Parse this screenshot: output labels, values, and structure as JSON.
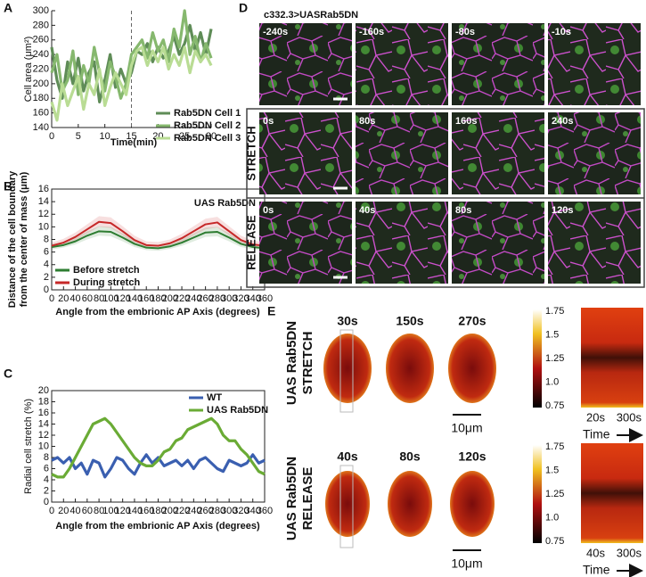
{
  "chart_data": [
    {
      "type": "line",
      "label": "A",
      "x_label": "Time(min)",
      "y_label": "Cell area (μm²)",
      "x": [
        0,
        1,
        2,
        3,
        4,
        5,
        6,
        7,
        8,
        9,
        10,
        11,
        12,
        13,
        14,
        15,
        16,
        17,
        18,
        19,
        20,
        21,
        22,
        23,
        24,
        25,
        26,
        27,
        28,
        29,
        30
      ],
      "xlim": [
        0,
        30
      ],
      "xticks": [
        0,
        5,
        10,
        15,
        20,
        25,
        30
      ],
      "ylim": [
        140,
        300
      ],
      "yticks": [
        140,
        160,
        180,
        200,
        220,
        240,
        260,
        280,
        300
      ],
      "vline": 15,
      "legend": "lower right",
      "series": [
        {
          "name": "Rab5DN Cell 1",
          "color": "#5f8c57",
          "values": [
            250,
            205,
            180,
            230,
            200,
            235,
            190,
            215,
            230,
            175,
            205,
            240,
            195,
            220,
            200,
            215,
            245,
            240,
            255,
            230,
            250,
            235,
            245,
            265,
            240,
            255,
            280,
            245,
            270,
            240,
            275
          ]
        },
        {
          "name": "Rab5DN Cell 2",
          "color": "#86b86e",
          "values": [
            215,
            240,
            190,
            205,
            245,
            185,
            225,
            200,
            250,
            215,
            190,
            230,
            210,
            180,
            200,
            240,
            250,
            260,
            235,
            270,
            245,
            260,
            230,
            275,
            250,
            300,
            240,
            265,
            230,
            255,
            235
          ]
        },
        {
          "name": "Rab5DN Cell 3",
          "color": "#b9dc94",
          "values": [
            175,
            150,
            200,
            170,
            190,
            210,
            165,
            200,
            185,
            220,
            170,
            195,
            215,
            200,
            185,
            225,
            245,
            250,
            225,
            245,
            230,
            250,
            220,
            240,
            225,
            250,
            215,
            245,
            230,
            240,
            225
          ]
        }
      ]
    },
    {
      "type": "line",
      "label": "B",
      "title": "UAS Rab5DN",
      "x_label": "Angle from the embrionic AP Axis (degrees)",
      "y_label": [
        "Distance of the cell boundary",
        "from the center of mass (μm)"
      ],
      "x": [
        0,
        20,
        40,
        60,
        80,
        100,
        120,
        140,
        160,
        180,
        200,
        220,
        240,
        260,
        280,
        300,
        320,
        340,
        360
      ],
      "xlim": [
        0,
        360
      ],
      "xticks": [
        0,
        20,
        40,
        60,
        80,
        100,
        120,
        140,
        160,
        180,
        200,
        220,
        240,
        260,
        280,
        300,
        320,
        340,
        360
      ],
      "ylim": [
        0,
        16
      ],
      "yticks": [
        0,
        2,
        4,
        6,
        8,
        10,
        12,
        14,
        16
      ],
      "legend": "lower left",
      "series": [
        {
          "name": "Before stretch",
          "color": "#2e7d32",
          "values": [
            6.8,
            7.1,
            7.7,
            8.6,
            9.3,
            9.2,
            8.3,
            7.3,
            6.7,
            6.6,
            6.9,
            7.5,
            8.3,
            9.1,
            9.2,
            8.3,
            7.3,
            6.8,
            6.6
          ],
          "lower": [
            6.4,
            6.7,
            7.2,
            8.0,
            8.6,
            8.5,
            7.7,
            6.8,
            6.3,
            6.2,
            6.5,
            7.0,
            7.7,
            8.4,
            8.5,
            7.7,
            6.8,
            6.4,
            6.2
          ],
          "upper": [
            7.3,
            7.6,
            8.3,
            9.3,
            10.1,
            10.0,
            9.0,
            7.9,
            7.2,
            7.1,
            7.4,
            8.1,
            9.0,
            9.9,
            10.0,
            9.0,
            7.9,
            7.3,
            7.1
          ]
        },
        {
          "name": "During stretch",
          "color": "#c62828",
          "values": [
            7.0,
            7.5,
            8.4,
            9.6,
            10.8,
            10.6,
            9.3,
            7.9,
            7.1,
            7.0,
            7.4,
            8.2,
            9.3,
            10.4,
            10.7,
            9.3,
            7.9,
            7.2,
            7.0
          ],
          "lower": [
            6.6,
            7.0,
            7.8,
            8.9,
            10.0,
            9.8,
            8.6,
            7.3,
            6.6,
            6.5,
            6.9,
            7.6,
            8.6,
            9.6,
            9.9,
            8.6,
            7.3,
            6.7,
            6.5
          ],
          "upper": [
            7.5,
            8.1,
            9.1,
            10.4,
            11.7,
            11.5,
            10.1,
            8.6,
            7.7,
            7.6,
            8.0,
            8.9,
            10.1,
            11.3,
            11.6,
            10.1,
            8.6,
            7.8,
            7.6
          ]
        }
      ]
    },
    {
      "type": "line",
      "label": "C",
      "x_label": "Angle from the embrionic AP Axis (degrees)",
      "y_label": "Radial cell stretch (%)",
      "x": [
        0,
        10,
        20,
        30,
        40,
        50,
        60,
        70,
        80,
        90,
        100,
        110,
        120,
        130,
        140,
        150,
        160,
        170,
        180,
        190,
        200,
        210,
        220,
        230,
        240,
        250,
        260,
        270,
        280,
        290,
        300,
        310,
        320,
        330,
        340,
        350,
        360
      ],
      "xlim": [
        0,
        360
      ],
      "xticks": [
        0,
        20,
        40,
        60,
        80,
        100,
        120,
        140,
        160,
        180,
        200,
        220,
        240,
        260,
        280,
        300,
        320,
        340,
        360
      ],
      "ylim": [
        0,
        20
      ],
      "yticks": [
        0,
        2,
        4,
        6,
        8,
        10,
        12,
        14,
        16,
        18,
        20
      ],
      "legend": "upper right",
      "series": [
        {
          "name": "WT",
          "color": "#3a5fb0",
          "values": [
            7.5,
            8,
            7,
            8,
            6,
            7,
            5,
            7.5,
            7,
            4.5,
            6,
            8,
            7.5,
            6,
            5,
            7,
            8.5,
            7,
            8,
            6.5,
            7,
            7.5,
            6.5,
            7.5,
            6,
            7.5,
            8,
            7,
            6,
            5.5,
            7.5,
            7,
            6.5,
            7,
            8.5,
            7,
            7.5
          ]
        },
        {
          "name": "UAS Rab5DN",
          "color": "#6aab35",
          "values": [
            5,
            4.5,
            4.5,
            6,
            8,
            10,
            12,
            14,
            14.5,
            15,
            14,
            12.5,
            11,
            9.5,
            8,
            7,
            6.5,
            6.5,
            7.5,
            9,
            9.5,
            11,
            11.5,
            13,
            13.5,
            14,
            14.5,
            15,
            14,
            12,
            11,
            11,
            9.5,
            8.5,
            7,
            5.5,
            5
          ]
        }
      ]
    }
  ],
  "panel_d": {
    "label": "D",
    "title": "c332.3>UASRab5DN",
    "rows": [
      {
        "times": [
          "-240s",
          "-160s",
          "-80s",
          "-10s"
        ]
      },
      {
        "label": "STRETCH",
        "times": [
          "0s",
          "80s",
          "160s",
          "240s"
        ]
      },
      {
        "label": "RELEASE",
        "times": [
          "0s",
          "40s",
          "80s",
          "120s"
        ]
      }
    ]
  },
  "panel_e": {
    "label": "E",
    "rows": [
      {
        "label": [
          "UAS Rab5DN",
          "STRETCH"
        ],
        "times": [
          "30s",
          "150s",
          "270s"
        ],
        "scale_bar": "10μm",
        "colorbar": [
          "1.75",
          "1.5",
          "1.25",
          "1.0",
          "0.75"
        ],
        "kymo_start": "20s",
        "kymo_end": "300s",
        "time": "Time"
      },
      {
        "label": [
          "UAS Rab5DN",
          "RELEASE"
        ],
        "times": [
          "40s",
          "80s",
          "120s"
        ],
        "scale_bar": "10μm",
        "colorbar": [
          "1.75",
          "1.5",
          "1.25",
          "1.0",
          "0.75"
        ],
        "kymo_start": "40s",
        "kymo_end": "300s",
        "time": "Time"
      }
    ]
  }
}
